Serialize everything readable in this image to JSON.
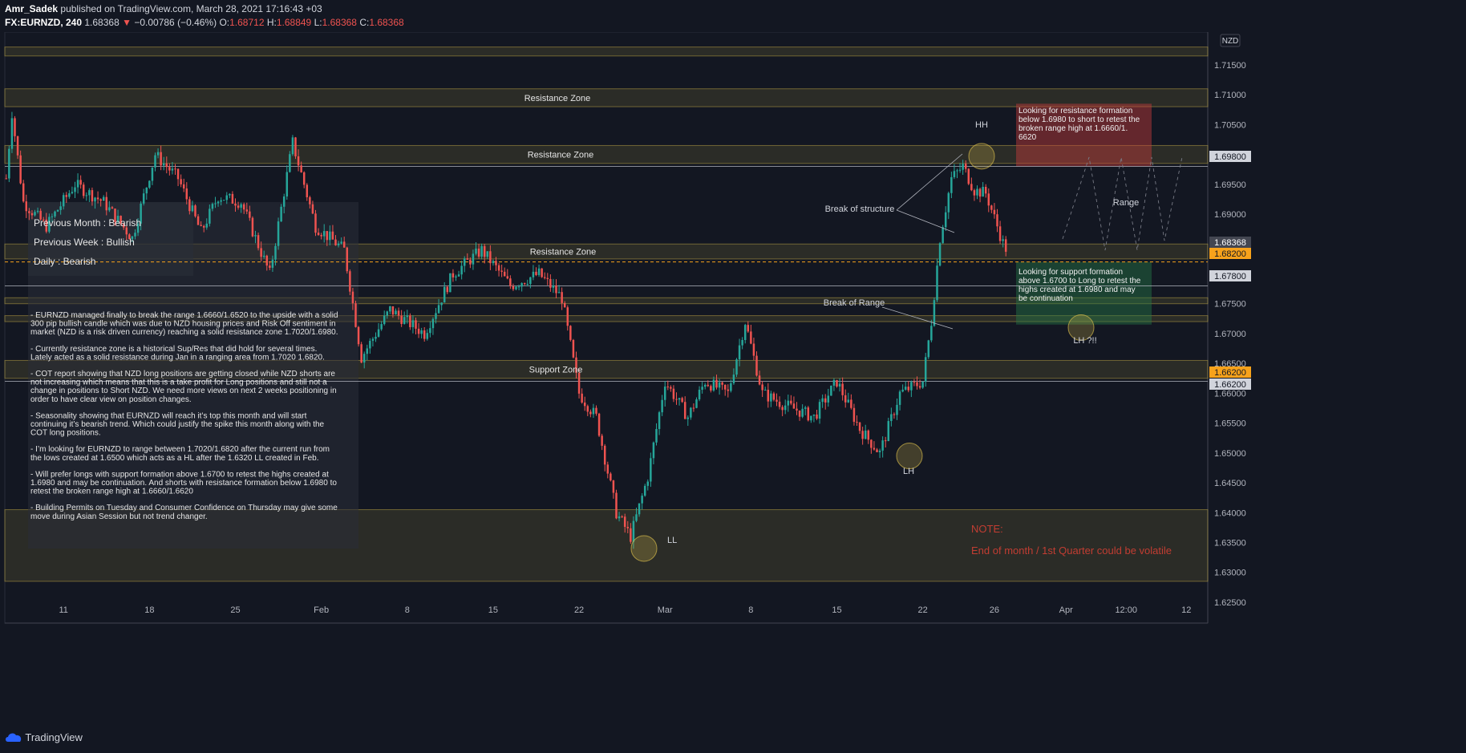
{
  "header": {
    "author": "Amr_Sadek",
    "published_text": "published on TradingView.com, March 28, 2021 17:16:43 +03",
    "symbol": "FX:EURNZD, 240",
    "last": "1.68368",
    "arrow": "▼",
    "change": "−0.00786 (−0.46%)",
    "o_label": "O:",
    "o": "1.68712",
    "h_label": "H:",
    "h": "1.68849",
    "l_label": "L:",
    "l": "1.68368",
    "c_label": "C:",
    "c": "1.68368"
  },
  "footer": {
    "brand": "TradingView"
  },
  "colors": {
    "up": "#26a69a",
    "down": "#ef5350",
    "zone": "#d4b94a",
    "note": "#c23d32",
    "accent": "#f7a21b"
  },
  "chart_data": {
    "type": "candlestick",
    "currency": "NZD",
    "ylim": [
      1.6215,
      1.7205
    ],
    "y_ticks": [
      "1.71500",
      "1.71000",
      "1.70500",
      "1.70000",
      "1.69500",
      "1.69000",
      "1.68500",
      "1.68000",
      "1.67500",
      "1.67000",
      "1.66500",
      "1.66000",
      "1.65500",
      "1.65000",
      "1.64500",
      "1.64000",
      "1.63500",
      "1.63000",
      "1.62500"
    ],
    "x_ticks": [
      {
        "label": "11",
        "bar": 20
      },
      {
        "label": "18",
        "bar": 50
      },
      {
        "label": "25",
        "bar": 80
      },
      {
        "label": "Feb",
        "bar": 110
      },
      {
        "label": "8",
        "bar": 140
      },
      {
        "label": "15",
        "bar": 170
      },
      {
        "label": "22",
        "bar": 200
      },
      {
        "label": "Mar",
        "bar": 230
      },
      {
        "label": "8",
        "bar": 260
      },
      {
        "label": "15",
        "bar": 290
      },
      {
        "label": "22",
        "bar": 320
      },
      {
        "label": "26",
        "bar": 345
      },
      {
        "label": "Apr",
        "bar": 370
      },
      {
        "label": "12:00",
        "bar": 391
      },
      {
        "label": "12",
        "bar": 412
      }
    ],
    "price_tags": [
      {
        "value": "1.69800",
        "style": "light"
      },
      {
        "value": "1.68368",
        "style": "dark"
      },
      {
        "value": "1.68200",
        "style": "accent"
      },
      {
        "value": "1.67800",
        "style": "light"
      },
      {
        "value": "1.66200",
        "style": "accent"
      },
      {
        "value": "1.66200",
        "style": "light"
      }
    ],
    "anchors": [
      {
        "bar": 0,
        "price": 1.696
      },
      {
        "bar": 2,
        "price": 1.707
      },
      {
        "bar": 6,
        "price": 1.692
      },
      {
        "bar": 14,
        "price": 1.688
      },
      {
        "bar": 24,
        "price": 1.695
      },
      {
        "bar": 34,
        "price": 1.692
      },
      {
        "bar": 44,
        "price": 1.686
      },
      {
        "bar": 52,
        "price": 1.7
      },
      {
        "bar": 60,
        "price": 1.696
      },
      {
        "bar": 68,
        "price": 1.687
      },
      {
        "bar": 74,
        "price": 1.693
      },
      {
        "bar": 82,
        "price": 1.692
      },
      {
        "bar": 92,
        "price": 1.68
      },
      {
        "bar": 100,
        "price": 1.702
      },
      {
        "bar": 108,
        "price": 1.688
      },
      {
        "bar": 118,
        "price": 1.684
      },
      {
        "bar": 124,
        "price": 1.666
      },
      {
        "bar": 134,
        "price": 1.674
      },
      {
        "bar": 146,
        "price": 1.67
      },
      {
        "bar": 156,
        "price": 1.68
      },
      {
        "bar": 166,
        "price": 1.684
      },
      {
        "bar": 176,
        "price": 1.678
      },
      {
        "bar": 186,
        "price": 1.68
      },
      {
        "bar": 194,
        "price": 1.676
      },
      {
        "bar": 200,
        "price": 1.66
      },
      {
        "bar": 206,
        "price": 1.656
      },
      {
        "bar": 213,
        "price": 1.64
      },
      {
        "bar": 218,
        "price": 1.636
      },
      {
        "bar": 224,
        "price": 1.646
      },
      {
        "bar": 230,
        "price": 1.662
      },
      {
        "bar": 238,
        "price": 1.656
      },
      {
        "bar": 244,
        "price": 1.662
      },
      {
        "bar": 252,
        "price": 1.66
      },
      {
        "bar": 258,
        "price": 1.672
      },
      {
        "bar": 264,
        "price": 1.66
      },
      {
        "bar": 272,
        "price": 1.658
      },
      {
        "bar": 282,
        "price": 1.656
      },
      {
        "bar": 290,
        "price": 1.662
      },
      {
        "bar": 298,
        "price": 1.654
      },
      {
        "bar": 305,
        "price": 1.65
      },
      {
        "bar": 312,
        "price": 1.66
      },
      {
        "bar": 320,
        "price": 1.662
      },
      {
        "bar": 323,
        "price": 1.672
      },
      {
        "bar": 326,
        "price": 1.686
      },
      {
        "bar": 330,
        "price": 1.696
      },
      {
        "bar": 334,
        "price": 1.698
      },
      {
        "bar": 338,
        "price": 1.694
      },
      {
        "bar": 342,
        "price": 1.6935
      },
      {
        "bar": 346,
        "price": 1.688
      },
      {
        "bar": 349,
        "price": 1.6837
      }
    ],
    "lines": [
      {
        "name": "line-1.6980",
        "price": 1.698,
        "style": "solid-light"
      },
      {
        "name": "line-1.6820",
        "price": 1.682,
        "style": "dashed-accent"
      },
      {
        "name": "line-1.6780",
        "price": 1.678,
        "style": "solid-light"
      },
      {
        "name": "line-1.6620",
        "price": 1.662,
        "style": "solid-light"
      }
    ],
    "zones": [
      {
        "top": 1.718,
        "bottom": 1.7165,
        "label": ""
      },
      {
        "top": 1.711,
        "bottom": 1.708,
        "label": "Resistance Zone"
      },
      {
        "top": 1.7015,
        "bottom": 1.6985,
        "label": "Resistance Zone"
      },
      {
        "top": 1.685,
        "bottom": 1.6825,
        "label": "Resistance Zone"
      },
      {
        "top": 1.676,
        "bottom": 1.675,
        "label": ""
      },
      {
        "top": 1.673,
        "bottom": 1.672,
        "label": ""
      },
      {
        "top": 1.6655,
        "bottom": 1.6625,
        "label": "Support Zone"
      },
      {
        "top": 1.6405,
        "bottom": 1.6285,
        "label": ""
      }
    ],
    "summary": [
      "Previous Month : Bearish",
      "Previous Week : Bullish",
      "Daily : Bearish"
    ],
    "notes": [
      [
        "- EURNZD managed finally to break the range 1.6660/1.6520 to the upside with a solid",
        "300 pip bullish candle which was due to NZD housing prices and Risk Off sentiment in",
        "market (NZD is a risk driven currency) reaching a solid resistance zone 1.7020/1.6980."
      ],
      [
        "- Currently resistance zone is a historical Sup/Res that did hold for several times.",
        "Lately acted as a solid resistance during Jan in a ranging area from 1.7020 1.6820."
      ],
      [
        "- COT report showing that NZD long positions are getting closed while NZD shorts are",
        "not increasing which means that this is a take profit for Long positions and still not a",
        "change in positions to Short NZD. We need more views on next 2 weeks positioning in",
        "order to have clear view on position changes."
      ],
      [
        "- Seasonality showing that EURNZD will reach it’s top this month and will start",
        "continuing it’s bearish trend. Which could justify the spike this month along with the",
        "COT long positions."
      ],
      [
        "- I’m looking for EURNZD to range between 1.7020/1.6820 after the current run from",
        "the lows created at 1.6500 which acts as a HL after the 1.6320 LL created in Feb."
      ],
      [
        "- Will prefer longs with support formation above 1.6700 to retest the highs created at",
        "1.6980 and may be continuation. And shorts with resistance formation below 1.6980 to",
        "retest the broken range high at 1.6660/1.6620"
      ],
      [
        "- Building Permits on Tuesday and Consumer Confidence on Thursday may give some",
        "move during Asian Session but not trend changer."
      ]
    ],
    "annotations": {
      "hh": "HH",
      "ll": "LL",
      "lh": "LH",
      "lh2": "LH ?!!",
      "break_structure": "Break of structure",
      "break_range": "Break of Range",
      "range": "Range",
      "short_box": [
        "Looking for resistance formation",
        "below 1.6980 to short to retest the",
        "broken range high at 1.6660/1.",
        "6620"
      ],
      "long_box": [
        "Looking for support formation",
        "above 1.6700 to Long to retest the",
        "highs created at 1.6980 and may",
        "be continuation"
      ],
      "note_title": "NOTE:",
      "note_text": "End of month / 1st Quarter could be volatile"
    }
  }
}
